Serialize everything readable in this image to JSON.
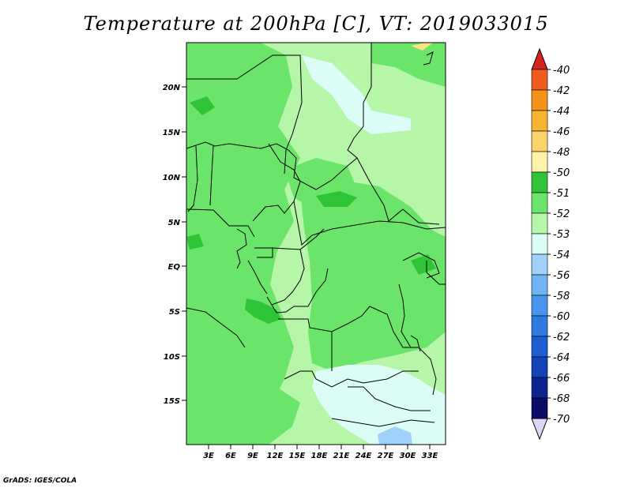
{
  "title": "Temperature at 200hPa [C], VT: 2019033015",
  "credit": "GrADS: IGES/COLA",
  "map": {
    "lat_range": [
      -20,
      25
    ],
    "lon_range": [
      0,
      35
    ],
    "lat_labels": [
      "20N",
      "15N",
      "10N",
      "5N",
      "EQ",
      "5S",
      "10S",
      "15S"
    ],
    "lon_labels": [
      "3E",
      "6E",
      "9E",
      "12E",
      "15E",
      "18E",
      "21E",
      "24E",
      "27E",
      "30E",
      "33E"
    ],
    "fill_colors": {
      "minus_51_to_52": "#2fc437",
      "minus_52_to_53": "#6be46a",
      "minus_53_to_54": "#b6f6a8",
      "minus_54_to_56": "#dcfcf6",
      "minus_56_to_58": "#9fd1fb",
      "minus_48_to_50": "#fbe37f"
    }
  },
  "colorbar": {
    "labels": [
      "-40",
      "-42",
      "-44",
      "-46",
      "-48",
      "-50",
      "-51",
      "-52",
      "-53",
      "-54",
      "-56",
      "-58",
      "-60",
      "-62",
      "-64",
      "-66",
      "-68",
      "-70"
    ],
    "colors": [
      "#e43020",
      "#ef5a1f",
      "#f5921c",
      "#f8b330",
      "#fbd36a",
      "#fdf2a7",
      "#2fc437",
      "#6be46a",
      "#b6f6a8",
      "#dcfcf6",
      "#9fd1fb",
      "#70b4f4",
      "#4994ec",
      "#2f7ae0",
      "#1d5fd2",
      "#1443b8",
      "#0c258e",
      "#0a0c6a"
    ],
    "top_triangle_color": "#d5231c",
    "bottom_triangle_color": "#dcd8f4"
  }
}
